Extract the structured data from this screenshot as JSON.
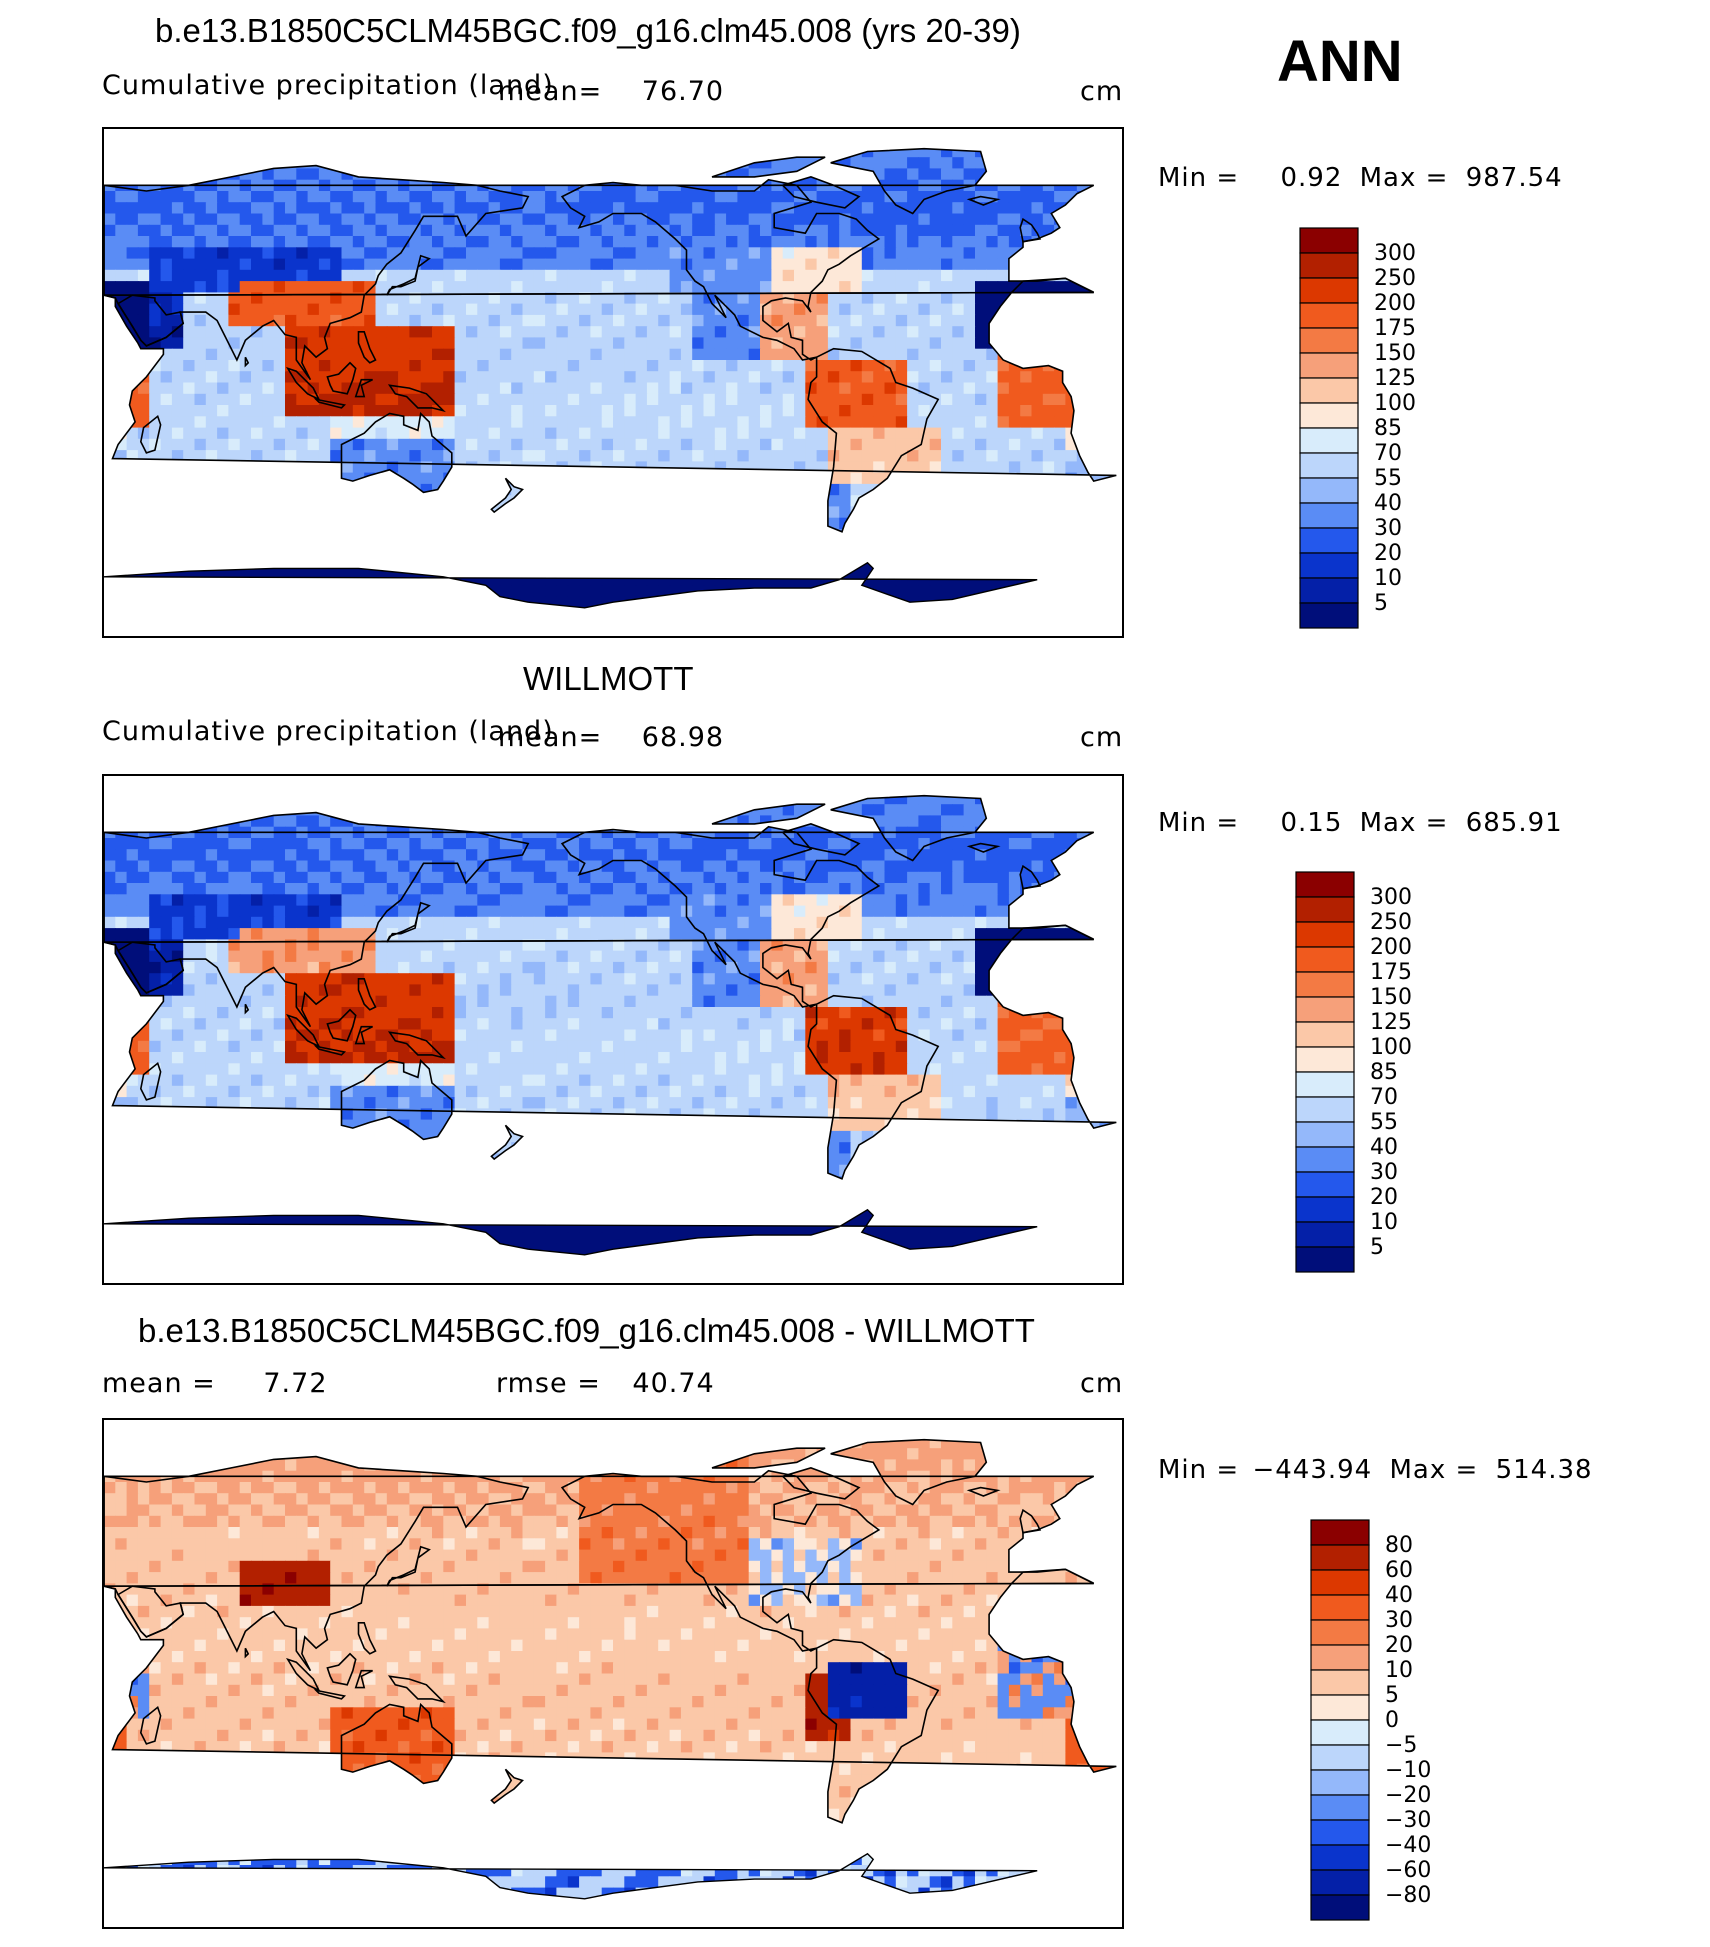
{
  "season": "ANN",
  "panels": [
    {
      "title": "b.e13.B1850C5CLM45BGC.f09_g16.clm45.008 (yrs 20-39)",
      "left_label": "Cumulative precipitation (land)",
      "stat1_label": "mean",
      "stat1_value": "76.70",
      "stat2_label": "",
      "stat2_value": "",
      "units": "cm",
      "min_label": "Min",
      "min_value": "0.92",
      "max_label": "Max",
      "max_value": "987.54",
      "colorbar_labels": [
        "300",
        "250",
        "200",
        "175",
        "150",
        "125",
        "100",
        "85",
        "70",
        "55",
        "40",
        "30",
        "20",
        "10",
        "5"
      ]
    },
    {
      "title": "WILLMOTT",
      "left_label": "Cumulative precipitation (land)",
      "stat1_label": "mean",
      "stat1_value": "68.98",
      "stat2_label": "",
      "stat2_value": "",
      "units": "cm",
      "min_label": "Min",
      "min_value": "0.15",
      "max_label": "Max",
      "max_value": "685.91",
      "colorbar_labels": [
        "300",
        "250",
        "200",
        "175",
        "150",
        "125",
        "100",
        "85",
        "70",
        "55",
        "40",
        "30",
        "20",
        "10",
        "5"
      ]
    },
    {
      "title": "b.e13.B1850C5CLM45BGC.f09_g16.clm45.008 - WILLMOTT",
      "left_label": "",
      "stat1_label": "mean",
      "stat1_value": "7.72",
      "stat2_label": "rmse",
      "stat2_value": "40.74",
      "units": "cm",
      "min_label": "Min",
      "min_value": "−443.94",
      "max_label": "Max",
      "max_value": "514.38",
      "colorbar_labels": [
        "80",
        "60",
        "40",
        "30",
        "20",
        "10",
        "5",
        "0",
        "−5",
        "−10",
        "−20",
        "−30",
        "−40",
        "−60",
        "−80"
      ]
    }
  ],
  "colors": {
    "precip_scale": [
      "#8b0000",
      "#b22000",
      "#dc3800",
      "#f05a1e",
      "#f37a44",
      "#f6a07a",
      "#fbc8a8",
      "#fde8d8",
      "#d8ecfb",
      "#bcd6fb",
      "#94b8fa",
      "#5a8cf5",
      "#2458ec",
      "#0a34cc",
      "#0420a8",
      "#000e7a"
    ],
    "diff_scale": [
      "#8b0000",
      "#b22000",
      "#dc3800",
      "#f05a1e",
      "#f37a44",
      "#f6a07a",
      "#fbc8a8",
      "#fde8d8",
      "#d8ecfb",
      "#bcd6fb",
      "#94b8fa",
      "#5a8cf5",
      "#2458ec",
      "#0a34cc",
      "#0420a8",
      "#000e7a"
    ]
  },
  "chart_data": [
    {
      "type": "heatmap",
      "title": "b.e13.B1850C5CLM45BGC.f09_g16.clm45.008 (yrs 20-39)",
      "variable": "Cumulative precipitation (land)",
      "units": "cm",
      "mean": 76.7,
      "min": 0.92,
      "max": 987.54,
      "contour_levels": [
        5,
        10,
        20,
        30,
        40,
        55,
        70,
        85,
        100,
        125,
        150,
        175,
        200,
        250,
        300
      ]
    },
    {
      "type": "heatmap",
      "title": "WILLMOTT",
      "variable": "Cumulative precipitation (land)",
      "units": "cm",
      "mean": 68.98,
      "min": 0.15,
      "max": 685.91,
      "contour_levels": [
        5,
        10,
        20,
        30,
        40,
        55,
        70,
        85,
        100,
        125,
        150,
        175,
        200,
        250,
        300
      ]
    },
    {
      "type": "heatmap",
      "title": "b.e13.B1850C5CLM45BGC.f09_g16.clm45.008 - WILLMOTT",
      "units": "cm",
      "mean": 7.72,
      "rmse": 40.74,
      "min": -443.94,
      "max": 514.38,
      "contour_levels": [
        -80,
        -60,
        -40,
        -30,
        -20,
        -10,
        -5,
        0,
        5,
        10,
        20,
        30,
        40,
        60,
        80
      ]
    }
  ]
}
